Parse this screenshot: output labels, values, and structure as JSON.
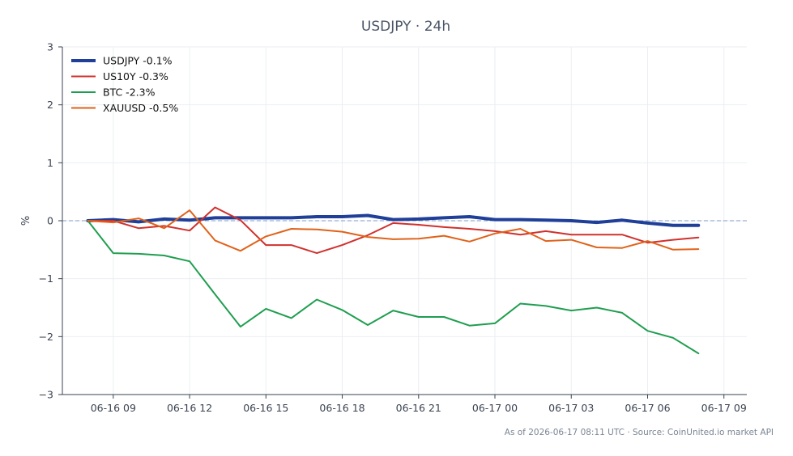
{
  "chart_data": {
    "type": "line",
    "title": "USDJPY · 24h",
    "xlabel": "",
    "ylabel": "%",
    "ylim": [
      -3,
      3
    ],
    "yticks": [
      {
        "value": 3,
        "label": "3"
      },
      {
        "value": 2,
        "label": "2"
      },
      {
        "value": 1,
        "label": "1"
      },
      {
        "value": 0,
        "label": "0"
      },
      {
        "value": -1,
        "label": "−1"
      },
      {
        "value": -2,
        "label": "−2"
      },
      {
        "value": -3,
        "label": "−3"
      }
    ],
    "xlim": [
      -2.0,
      24.9
    ],
    "xticks": [
      {
        "value": 0,
        "label": "06-16 09"
      },
      {
        "value": 3,
        "label": "06-16 12"
      },
      {
        "value": 6,
        "label": "06-16 15"
      },
      {
        "value": 9,
        "label": "06-16 18"
      },
      {
        "value": 12,
        "label": "06-16 21"
      },
      {
        "value": 15,
        "label": "06-17 00"
      },
      {
        "value": 18,
        "label": "06-17 03"
      },
      {
        "value": 21,
        "label": "06-17 06"
      },
      {
        "value": 24,
        "label": "06-17 09"
      }
    ],
    "x": [
      -1,
      0,
      1,
      2,
      3,
      4,
      5,
      6,
      7,
      8,
      9,
      10,
      11,
      12,
      13,
      14,
      15,
      16,
      17,
      18,
      19,
      20,
      21,
      22,
      23
    ],
    "grid": true,
    "legend_position": "top-left",
    "reference_line": 0,
    "series": [
      {
        "name": "USDJPY -0.1%",
        "color": "#1f3f99",
        "width": 4,
        "values": [
          0,
          0.02,
          -0.02,
          0.03,
          0.01,
          0.05,
          0.05,
          0.05,
          0.05,
          0.07,
          0.07,
          0.09,
          0.02,
          0.03,
          0.05,
          0.07,
          0.02,
          0.02,
          0.01,
          0,
          -0.03,
          0.01,
          -0.04,
          -0.08,
          -0.08
        ]
      },
      {
        "name": "US10Y -0.3%",
        "color": "#d0312d",
        "width": 2,
        "values": [
          0,
          0,
          -0.13,
          -0.09,
          -0.17,
          0.23,
          0.01,
          -0.42,
          -0.42,
          -0.56,
          -0.42,
          -0.25,
          -0.04,
          -0.07,
          -0.11,
          -0.14,
          -0.18,
          -0.24,
          -0.18,
          -0.24,
          -0.24,
          -0.24,
          -0.38,
          -0.33,
          -0.29
        ]
      },
      {
        "name": "BTC -2.3%",
        "color": "#1f9e4f",
        "width": 2,
        "values": [
          0,
          -0.56,
          -0.57,
          -0.6,
          -0.7,
          -1.27,
          -1.83,
          -1.52,
          -1.68,
          -1.36,
          -1.54,
          -1.8,
          -1.55,
          -1.66,
          -1.66,
          -1.81,
          -1.77,
          -1.43,
          -1.47,
          -1.55,
          -1.5,
          -1.59,
          -1.9,
          -2.02,
          -2.29
        ]
      },
      {
        "name": "XAUUSD -0.5%",
        "color": "#e0621a",
        "width": 2,
        "values": [
          0,
          -0.03,
          0.04,
          -0.13,
          0.18,
          -0.34,
          -0.52,
          -0.27,
          -0.14,
          -0.15,
          -0.19,
          -0.28,
          -0.32,
          -0.31,
          -0.26,
          -0.36,
          -0.22,
          -0.14,
          -0.35,
          -0.33,
          -0.46,
          -0.47,
          -0.35,
          -0.5,
          -0.49
        ]
      }
    ]
  },
  "footer": "As of 2026-06-17 08:11 UTC · Source: CoinUnited.io market API"
}
